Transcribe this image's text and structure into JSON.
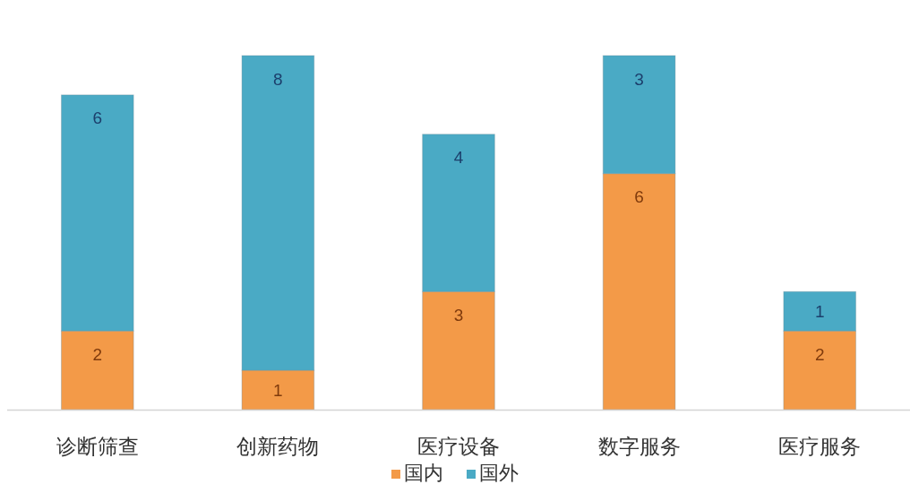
{
  "chart_data": {
    "type": "bar",
    "stacked": true,
    "categories": [
      "诊断筛查",
      "创新药物",
      "医疗设备",
      "数字服务",
      "医疗服务"
    ],
    "series": [
      {
        "name": "国内",
        "color": "#f39a48",
        "values": [
          2,
          1,
          3,
          6,
          2
        ]
      },
      {
        "name": "国外",
        "color": "#4aaac5",
        "values": [
          6,
          8,
          4,
          3,
          1
        ]
      }
    ],
    "data_labels": true,
    "legend": "bottom"
  }
}
